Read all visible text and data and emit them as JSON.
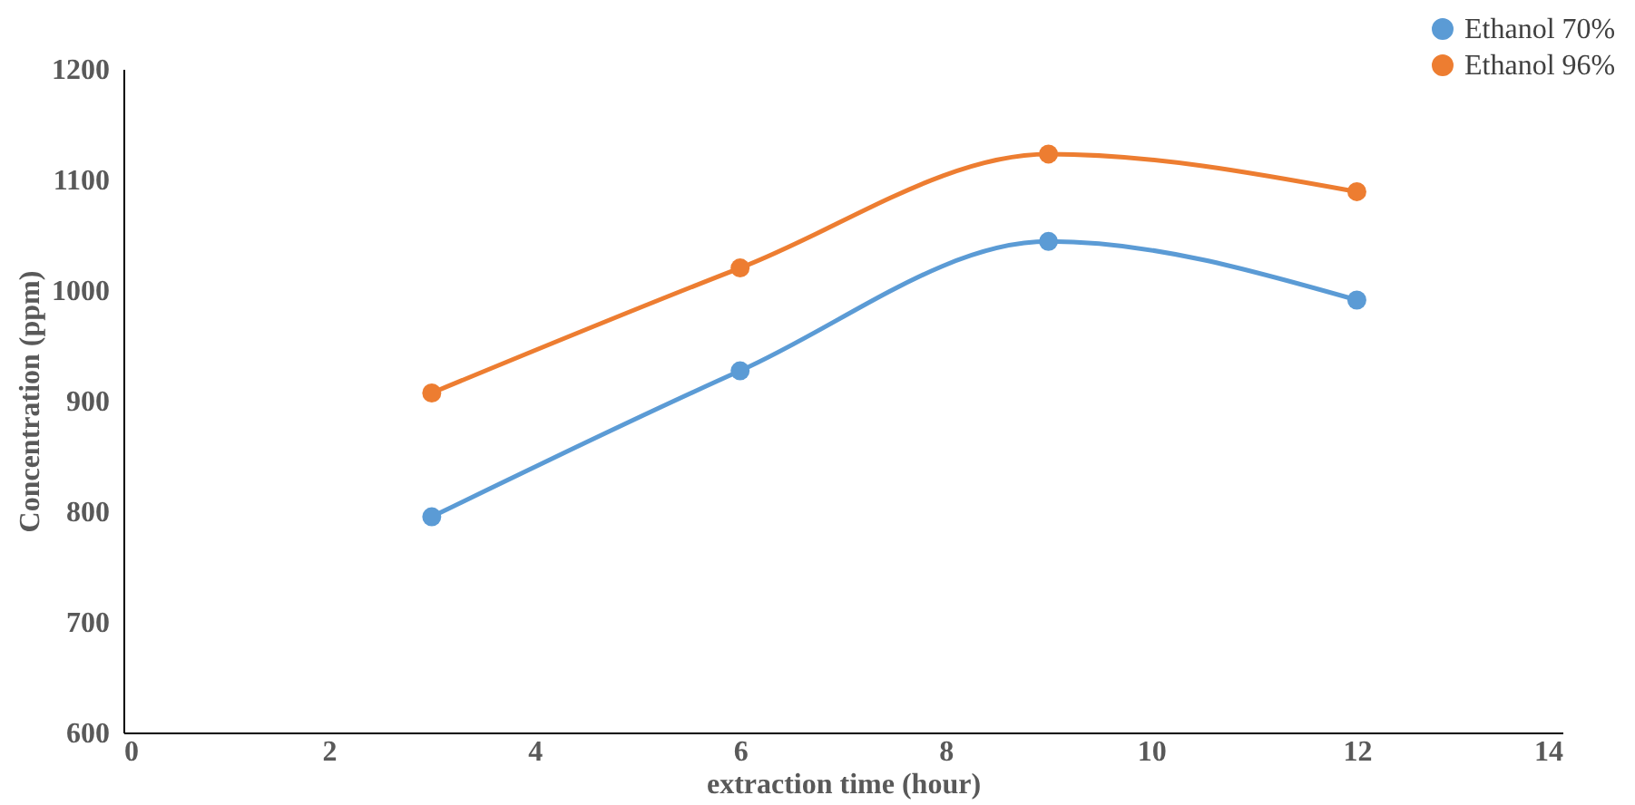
{
  "chart_data": {
    "type": "line",
    "xlabel": "extraction time (hour)",
    "ylabel": "Concentration (ppm)",
    "x": [
      3,
      6,
      9,
      12
    ],
    "series": [
      {
        "name": "Ethanol 70%",
        "color": "#5b9bd5",
        "values": [
          795,
          927,
          1044,
          991
        ]
      },
      {
        "name": "Ethanol 96%",
        "color": "#ed7d31",
        "values": [
          907,
          1020,
          1123,
          1089
        ]
      }
    ],
    "xlim": [
      0,
      14
    ],
    "xticks": [
      0,
      2,
      4,
      6,
      8,
      10,
      12,
      14
    ],
    "ylim": [
      600,
      1200
    ],
    "yticks": [
      600,
      700,
      800,
      900,
      1000,
      1100,
      1200
    ],
    "grid": false,
    "legend": "top right",
    "marker": "circle",
    "line_style": "solid"
  }
}
